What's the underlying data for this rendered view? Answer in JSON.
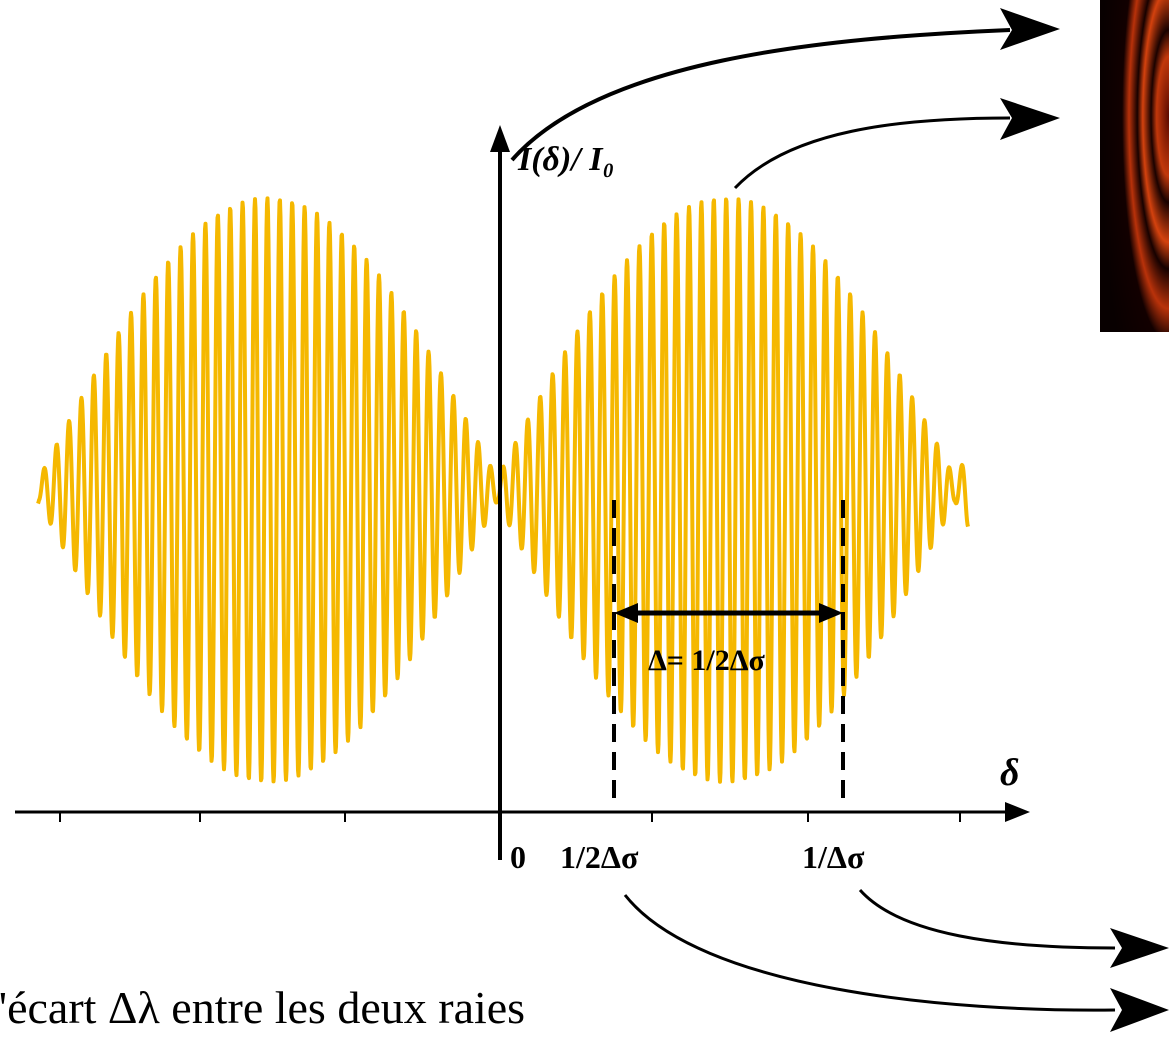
{
  "figure": {
    "y_axis_label": "I(δ)/ I₀",
    "x_axis_label": "δ",
    "tick_labels": [
      "0",
      "1/2Δσ",
      "1/Δσ"
    ],
    "period_annotation": "Δ= 1/2Δσ",
    "signal_color": "#F5B800",
    "axis_color": "#000000"
  },
  "caption": "l'écart  Δλ  entre les deux raies"
}
